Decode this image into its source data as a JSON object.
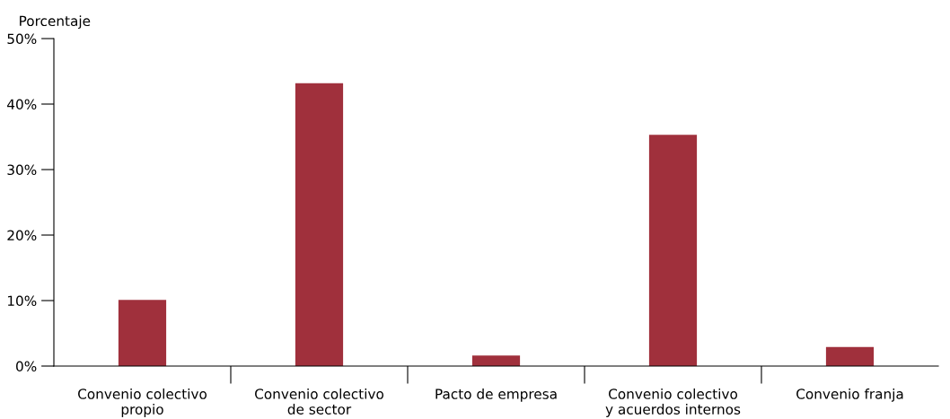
{
  "chart_data": {
    "type": "bar",
    "ylabel": "Porcentaje",
    "categories": [
      "Convenio colectivo\npropio",
      "Convenio colectivo\nde sector",
      "Pacto de empresa",
      "Convenio colectivo\ny acuerdos internos",
      "Convenio franja"
    ],
    "values": [
      10.1,
      43.2,
      1.6,
      35.3,
      2.9
    ],
    "color": "#a0303c",
    "ylim": [
      0,
      50
    ],
    "yticks": [
      {
        "value": 0,
        "label": "0%"
      },
      {
        "value": 10,
        "label": "10%"
      },
      {
        "value": 20,
        "label": "20%"
      },
      {
        "value": 30,
        "label": "30%"
      },
      {
        "value": 40,
        "label": "40%"
      },
      {
        "value": 50,
        "label": "50%"
      }
    ],
    "grid": false
  }
}
